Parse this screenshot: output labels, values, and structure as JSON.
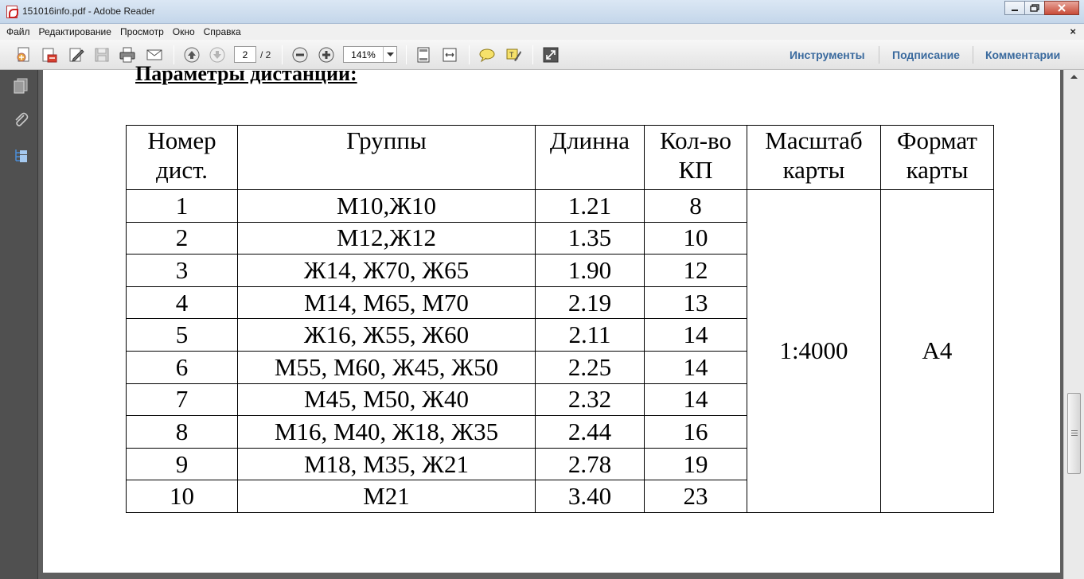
{
  "window": {
    "title": "151016info.pdf - Adobe Reader"
  },
  "menu": {
    "items": [
      "Файл",
      "Редактирование",
      "Просмотр",
      "Окно",
      "Справка"
    ],
    "close_glyph": "×"
  },
  "toolbar": {
    "current_page": "2",
    "total_pages": "/ 2",
    "zoom": "141%",
    "icons": [
      "create-pdf-icon",
      "convert-pdf-icon",
      "edit-icon",
      "save-icon",
      "print-icon",
      "email-icon",
      "prev-page-icon",
      "next-page-icon",
      "zoom-out-icon",
      "zoom-in-icon",
      "fit-page-icon",
      "fit-width-icon",
      "comment-icon",
      "highlight-icon",
      "fullscreen-icon"
    ],
    "tools_label": "Инструменты",
    "sign_label": "Подписание",
    "comments_label": "Комментарии"
  },
  "navpane": {
    "icons": [
      "pages-icon",
      "attachments-icon",
      "bookmarks-icon"
    ]
  },
  "document": {
    "heading": "Параметры дистанции:",
    "table": {
      "headers": [
        "Номер дист.",
        "Группы",
        "Длинна",
        "Кол-во КП",
        "Масштаб карты",
        "Формат карты"
      ],
      "header_lines": [
        [
          "Номер",
          "дист."
        ],
        [
          "Группы"
        ],
        [
          "Длинна"
        ],
        [
          "Кол-во",
          "КП"
        ],
        [
          "Масштаб",
          "карты"
        ],
        [
          "Формат",
          "карты"
        ]
      ],
      "rows": [
        {
          "num": "1",
          "groups": "М10,Ж10",
          "length": "1.21",
          "cp": "8"
        },
        {
          "num": "2",
          "groups": "М12,Ж12",
          "length": "1.35",
          "cp": "10"
        },
        {
          "num": "3",
          "groups": "Ж14, Ж70, Ж65",
          "length": "1.90",
          "cp": "12"
        },
        {
          "num": "4",
          "groups": "М14, М65, М70",
          "length": "2.19",
          "cp": "13"
        },
        {
          "num": "5",
          "groups": "Ж16, Ж55, Ж60",
          "length": "2.11",
          "cp": "14"
        },
        {
          "num": "6",
          "groups": "М55, М60, Ж45, Ж50",
          "length": "2.25",
          "cp": "14"
        },
        {
          "num": "7",
          "groups": "М45, М50, Ж40",
          "length": "2.32",
          "cp": "14"
        },
        {
          "num": "8",
          "groups": "М16, М40, Ж18, Ж35",
          "length": "2.44",
          "cp": "16"
        },
        {
          "num": "9",
          "groups": "М18, М35, Ж21",
          "length": "2.78",
          "cp": "19"
        },
        {
          "num": "10",
          "groups": "М21",
          "length": "3.40",
          "cp": "23"
        }
      ],
      "scale": "1:4000",
      "format": "А4"
    }
  }
}
